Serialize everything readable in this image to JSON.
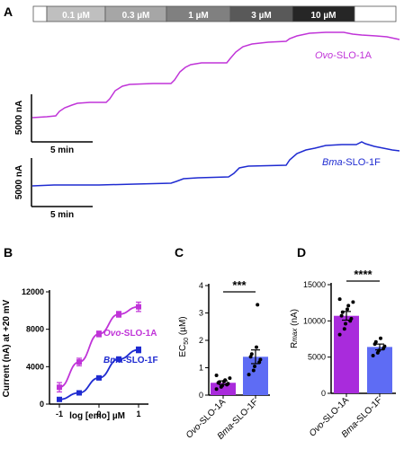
{
  "panel_labels": {
    "A": "A",
    "B": "B",
    "C": "C",
    "D": "D"
  },
  "conc_bar": {
    "segments": [
      {
        "label": "",
        "color": "#ffffff"
      },
      {
        "label": "0.1 µM",
        "color": "#bfbfbf"
      },
      {
        "label": "0.3 µM",
        "color": "#a6a6a6"
      },
      {
        "label": "1 µM",
        "color": "#808080"
      },
      {
        "label": "3 µM",
        "color": "#595959"
      },
      {
        "label": "10 µM",
        "color": "#262626"
      },
      {
        "label": "",
        "color": "#ffffff"
      }
    ]
  },
  "colors": {
    "ovo": "#c034d8",
    "bma": "#1f2bd1",
    "ovo_fill": "#a92bdc",
    "bma_fill": "#5e6cf4"
  },
  "chart_data": [
    {
      "type": "line",
      "panel": "A",
      "trace": "Ovo-SLO-1A",
      "ylabel": "5000 nA",
      "xlabel": "5 min",
      "series": [
        {
          "name_italic": "Ovo",
          "name_rest": "-SLO-1A",
          "color": "#c034d8"
        }
      ],
      "scalebar": {
        "y": "5000 nA",
        "x": "5 min"
      }
    },
    {
      "type": "line",
      "panel": "A",
      "trace": "Bma-SLO-1F",
      "ylabel": "5000 nA",
      "xlabel": "5 min",
      "series": [
        {
          "name_italic": "Bma",
          "name_rest": "-SLO-1F",
          "color": "#1f2bd1"
        }
      ],
      "scalebar": {
        "y": "5000 nA",
        "x": "5 min"
      }
    },
    {
      "type": "line",
      "panel": "B",
      "xlabel": "log [emo] µM",
      "ylabel": "Current (nA) at +20 mV",
      "xlim": [
        -1.25,
        1.25
      ],
      "ylim": [
        0,
        12000
      ],
      "xticks": [
        "-1",
        "0",
        "1"
      ],
      "yticks": [
        "0",
        "4000",
        "8000",
        "12000"
      ],
      "x": [
        -1,
        -0.5,
        0,
        0.5,
        1
      ],
      "series": [
        {
          "name_italic": "Ovo",
          "name_rest": "-SLO-1A",
          "color": "#c034d8",
          "values": [
            1800,
            4500,
            7500,
            9600,
            10400
          ],
          "errors": [
            500,
            400,
            300,
            300,
            500
          ]
        },
        {
          "name_italic": "Bma",
          "name_rest": "-SLO-1F",
          "color": "#1f2bd1",
          "values": [
            500,
            1200,
            2800,
            4800,
            5800
          ],
          "errors": [
            150,
            200,
            200,
            250,
            300
          ]
        }
      ]
    },
    {
      "type": "bar",
      "panel": "C",
      "ylabel": "EC50 (µM)",
      "ylim": [
        0,
        4
      ],
      "yticks": [
        "0",
        "1",
        "2",
        "3",
        "4"
      ],
      "categories": [
        {
          "italic": "Ovo",
          "rest": "-SLO-1A"
        },
        {
          "italic": "Bma",
          "rest": "-SLO-1F"
        }
      ],
      "values": [
        0.45,
        1.4
      ],
      "errors": [
        0.07,
        0.25
      ],
      "points": [
        [
          0.22,
          0.3,
          0.35,
          0.38,
          0.42,
          0.45,
          0.48,
          0.5,
          0.55,
          0.62,
          0.72
        ],
        [
          0.75,
          0.9,
          1.05,
          1.2,
          1.3,
          1.4,
          1.5,
          1.75,
          3.3
        ]
      ],
      "significance": "***"
    },
    {
      "type": "bar",
      "panel": "D",
      "ylabel": "Rmax (nA)",
      "ylim": [
        0,
        15000
      ],
      "yticks": [
        "0",
        "5000",
        "10000",
        "15000"
      ],
      "categories": [
        {
          "italic": "Ovo",
          "rest": "-SLO-1A"
        },
        {
          "italic": "Bma",
          "rest": "-SLO-1F"
        }
      ],
      "values": [
        10700,
        6400
      ],
      "errors": [
        600,
        400
      ],
      "points": [
        [
          8100,
          8900,
          9600,
          10000,
          10300,
          10700,
          11200,
          11600,
          12100,
          12600,
          13000
        ],
        [
          5200,
          5600,
          5900,
          6200,
          6500,
          6800,
          7100,
          7600
        ]
      ],
      "significance": "****"
    }
  ]
}
